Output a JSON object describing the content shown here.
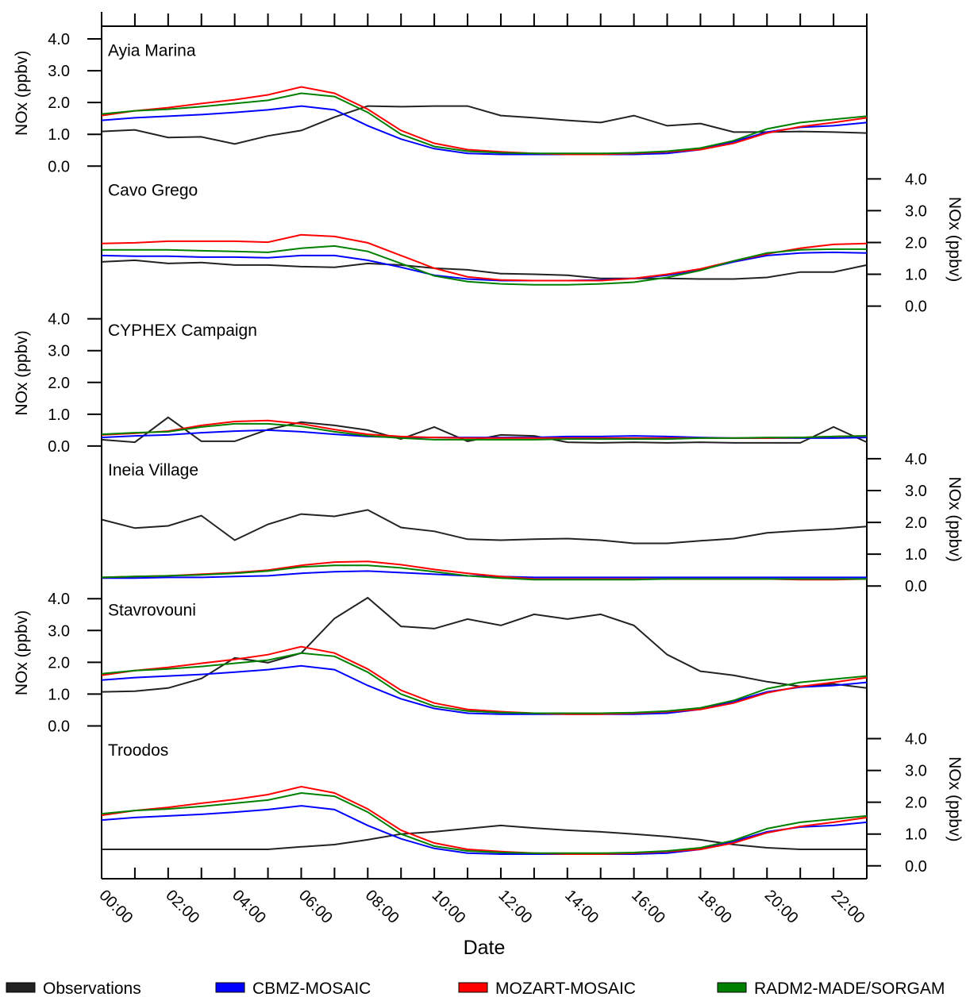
{
  "chart_data": {
    "type": "line",
    "xlabel": "Date",
    "ylabel": "NOx (ppbv)",
    "categories": [
      "00:00",
      null,
      "02:00",
      null,
      "04:00",
      null,
      "06:00",
      null,
      "08:00",
      null,
      "10:00",
      null,
      "12:00",
      null,
      "14:00",
      null,
      "16:00",
      null,
      "18:00",
      null,
      "20:00",
      null,
      "22:00",
      null
    ],
    "panels": [
      {
        "title": "Ayia Marina",
        "axis": "left",
        "ylim": [
          0,
          4.4
        ],
        "yticks": [
          {
            "value": 0,
            "label": "0.0"
          },
          {
            "value": 1,
            "label": "1.0"
          },
          {
            "value": 2,
            "label": "2.0"
          },
          {
            "value": 3,
            "label": "3.0"
          },
          {
            "value": 4,
            "label": "4.0"
          }
        ],
        "series": [
          {
            "name": "Observations",
            "color": "#222222",
            "values": [
              1.09,
              1.14,
              0.9,
              0.92,
              0.7,
              0.95,
              1.12,
              1.54,
              1.89,
              1.87,
              1.89,
              1.89,
              1.59,
              1.52,
              1.44,
              1.37,
              1.59,
              1.27,
              1.34,
              1.07,
              1.07,
              1.09,
              1.07,
              1.04
            ]
          },
          {
            "name": "CBMZ-MOSAIC",
            "color": "#0000ff",
            "values": [
              1.44,
              1.52,
              1.57,
              1.62,
              1.69,
              1.77,
              1.89,
              1.77,
              1.27,
              0.85,
              0.55,
              0.4,
              0.37,
              0.37,
              0.37,
              0.37,
              0.37,
              0.4,
              0.52,
              0.77,
              1.07,
              1.22,
              1.27,
              1.37
            ]
          },
          {
            "name": "MOZART-MOSAIC",
            "color": "#ff0000",
            "values": [
              1.59,
              1.74,
              1.84,
              1.97,
              2.09,
              2.24,
              2.49,
              2.29,
              1.79,
              1.12,
              0.72,
              0.52,
              0.45,
              0.4,
              0.37,
              0.37,
              0.4,
              0.45,
              0.52,
              0.72,
              1.04,
              1.24,
              1.37,
              1.52
            ]
          },
          {
            "name": "RADM2-MADE/SORGAM",
            "color": "#008000",
            "values": [
              1.64,
              1.74,
              1.79,
              1.87,
              1.97,
              2.07,
              2.29,
              2.19,
              1.69,
              1.0,
              0.62,
              0.47,
              0.42,
              0.4,
              0.4,
              0.4,
              0.42,
              0.47,
              0.57,
              0.8,
              1.17,
              1.37,
              1.47,
              1.57
            ]
          }
        ]
      },
      {
        "title": "Cavo Grego",
        "axis": "right",
        "ylim": [
          0,
          4.4
        ],
        "yticks": [
          {
            "value": 0,
            "label": "0.0"
          },
          {
            "value": 1,
            "label": "1.0"
          },
          {
            "value": 2,
            "label": "2.0"
          },
          {
            "value": 3,
            "label": "3.0"
          },
          {
            "value": 4,
            "label": "4.0"
          }
        ],
        "series": [
          {
            "name": "Observations",
            "color": "#222222",
            "values": [
              1.39,
              1.44,
              1.34,
              1.37,
              1.29,
              1.29,
              1.24,
              1.22,
              1.34,
              1.29,
              1.19,
              1.14,
              1.02,
              1.0,
              0.97,
              0.87,
              0.87,
              0.87,
              0.85,
              0.85,
              0.9,
              1.07,
              1.07,
              1.29
            ]
          },
          {
            "name": "CBMZ-MOSAIC",
            "color": "#0000ff",
            "values": [
              1.59,
              1.57,
              1.57,
              1.54,
              1.54,
              1.52,
              1.59,
              1.59,
              1.44,
              1.22,
              0.97,
              0.85,
              0.8,
              0.8,
              0.8,
              0.82,
              0.87,
              0.97,
              1.14,
              1.39,
              1.59,
              1.67,
              1.69,
              1.67
            ]
          },
          {
            "name": "MOZART-MOSAIC",
            "color": "#ff0000",
            "values": [
              1.97,
              1.99,
              2.04,
              2.04,
              2.04,
              2.01,
              2.24,
              2.19,
              1.99,
              1.59,
              1.19,
              0.92,
              0.82,
              0.8,
              0.8,
              0.8,
              0.87,
              1.0,
              1.17,
              1.42,
              1.64,
              1.82,
              1.94,
              1.97
            ]
          },
          {
            "name": "RADM2-MADE/SORGAM",
            "color": "#008000",
            "values": [
              1.77,
              1.77,
              1.77,
              1.74,
              1.72,
              1.69,
              1.82,
              1.89,
              1.72,
              1.34,
              0.95,
              0.77,
              0.7,
              0.67,
              0.67,
              0.7,
              0.75,
              0.9,
              1.12,
              1.42,
              1.67,
              1.77,
              1.79,
              1.79
            ]
          }
        ]
      },
      {
        "title": "CYPHEX Campaign",
        "axis": "left",
        "ylim": [
          0,
          4.4
        ],
        "yticks": [
          {
            "value": 0,
            "label": "0.0"
          },
          {
            "value": 1,
            "label": "1.0"
          },
          {
            "value": 2,
            "label": "2.0"
          },
          {
            "value": 3,
            "label": "3.0"
          },
          {
            "value": 4,
            "label": "4.0"
          }
        ],
        "series": [
          {
            "name": "Observations",
            "color": "#222222",
            "values": [
              0.2,
              0.12,
              0.9,
              0.15,
              0.15,
              0.52,
              0.75,
              0.65,
              0.5,
              0.22,
              0.6,
              0.15,
              0.35,
              0.32,
              0.12,
              0.1,
              0.12,
              0.1,
              0.12,
              0.1,
              0.1,
              0.1,
              0.6,
              0.12
            ]
          },
          {
            "name": "CBMZ-MOSAIC",
            "color": "#0000ff",
            "values": [
              0.27,
              0.32,
              0.35,
              0.42,
              0.47,
              0.5,
              0.45,
              0.37,
              0.3,
              0.27,
              0.27,
              0.27,
              0.27,
              0.27,
              0.3,
              0.3,
              0.32,
              0.3,
              0.27,
              0.25,
              0.25,
              0.25,
              0.25,
              0.27
            ]
          },
          {
            "name": "MOZART-MOSAIC",
            "color": "#ff0000",
            "values": [
              0.35,
              0.4,
              0.47,
              0.65,
              0.77,
              0.8,
              0.7,
              0.52,
              0.37,
              0.3,
              0.27,
              0.25,
              0.25,
              0.25,
              0.25,
              0.25,
              0.25,
              0.25,
              0.25,
              0.25,
              0.25,
              0.27,
              0.3,
              0.32
            ]
          },
          {
            "name": "RADM2-MADE/SORGAM",
            "color": "#008000",
            "values": [
              0.37,
              0.42,
              0.45,
              0.6,
              0.7,
              0.7,
              0.62,
              0.45,
              0.32,
              0.25,
              0.2,
              0.2,
              0.2,
              0.2,
              0.22,
              0.22,
              0.22,
              0.22,
              0.25,
              0.25,
              0.27,
              0.27,
              0.3,
              0.32
            ]
          }
        ]
      },
      {
        "title": "Ineia Village",
        "axis": "right",
        "ylim": [
          0,
          4.4
        ],
        "yticks": [
          {
            "value": 0,
            "label": "0.0"
          },
          {
            "value": 1,
            "label": "1.0"
          },
          {
            "value": 2,
            "label": "2.0"
          },
          {
            "value": 3,
            "label": "3.0"
          },
          {
            "value": 4,
            "label": "4.0"
          }
        ],
        "series": [
          {
            "name": "Observations",
            "color": "#222222",
            "values": [
              2.09,
              1.82,
              1.89,
              2.21,
              1.44,
              1.94,
              2.26,
              2.19,
              2.39,
              1.84,
              1.72,
              1.47,
              1.44,
              1.47,
              1.49,
              1.44,
              1.34,
              1.34,
              1.42,
              1.49,
              1.67,
              1.74,
              1.79,
              1.87
            ]
          },
          {
            "name": "CBMZ-MOSAIC",
            "color": "#0000ff",
            "values": [
              0.25,
              0.25,
              0.27,
              0.27,
              0.3,
              0.32,
              0.4,
              0.45,
              0.47,
              0.42,
              0.37,
              0.32,
              0.3,
              0.27,
              0.27,
              0.27,
              0.27,
              0.27,
              0.27,
              0.27,
              0.27,
              0.27,
              0.27,
              0.27
            ]
          },
          {
            "name": "MOZART-MOSAIC",
            "color": "#ff0000",
            "values": [
              0.27,
              0.3,
              0.32,
              0.37,
              0.42,
              0.5,
              0.65,
              0.75,
              0.77,
              0.67,
              0.52,
              0.4,
              0.3,
              0.22,
              0.22,
              0.22,
              0.22,
              0.22,
              0.22,
              0.22,
              0.22,
              0.2,
              0.2,
              0.22
            ]
          },
          {
            "name": "RADM2-MADE/SORGAM",
            "color": "#008000",
            "values": [
              0.27,
              0.3,
              0.32,
              0.35,
              0.4,
              0.47,
              0.6,
              0.65,
              0.65,
              0.57,
              0.45,
              0.32,
              0.25,
              0.2,
              0.2,
              0.2,
              0.2,
              0.22,
              0.22,
              0.22,
              0.22,
              0.22,
              0.22,
              0.22
            ]
          }
        ]
      },
      {
        "title": "Stavrovouni",
        "axis": "left",
        "ylim": [
          0,
          4.4
        ],
        "yticks": [
          {
            "value": 0,
            "label": "0.0"
          },
          {
            "value": 1,
            "label": "1.0"
          },
          {
            "value": 2,
            "label": "2.0"
          },
          {
            "value": 3,
            "label": "3.0"
          },
          {
            "value": 4,
            "label": "4.0"
          }
        ],
        "series": [
          {
            "name": "Observations",
            "color": "#222222",
            "values": [
              1.07,
              1.09,
              1.19,
              1.49,
              2.14,
              1.99,
              2.29,
              3.38,
              4.03,
              3.13,
              3.06,
              3.36,
              3.16,
              3.51,
              3.36,
              3.51,
              3.16,
              2.24,
              1.72,
              1.59,
              1.39,
              1.24,
              1.32,
              1.19
            ]
          },
          {
            "name": "CBMZ-MOSAIC",
            "color": "#0000ff",
            "values": [
              1.44,
              1.52,
              1.57,
              1.62,
              1.69,
              1.77,
              1.89,
              1.77,
              1.27,
              0.85,
              0.55,
              0.4,
              0.37,
              0.37,
              0.37,
              0.37,
              0.37,
              0.4,
              0.52,
              0.77,
              1.07,
              1.22,
              1.27,
              1.37
            ]
          },
          {
            "name": "MOZART-MOSAIC",
            "color": "#ff0000",
            "values": [
              1.59,
              1.74,
              1.84,
              1.97,
              2.09,
              2.24,
              2.49,
              2.29,
              1.79,
              1.12,
              0.72,
              0.52,
              0.45,
              0.4,
              0.37,
              0.37,
              0.4,
              0.45,
              0.52,
              0.72,
              1.04,
              1.24,
              1.37,
              1.52
            ]
          },
          {
            "name": "RADM2-MADE/SORGAM",
            "color": "#008000",
            "values": [
              1.64,
              1.74,
              1.79,
              1.87,
              1.97,
              2.07,
              2.29,
              2.19,
              1.69,
              1.0,
              0.62,
              0.47,
              0.42,
              0.4,
              0.4,
              0.4,
              0.42,
              0.47,
              0.57,
              0.8,
              1.17,
              1.37,
              1.47,
              1.57
            ]
          }
        ]
      },
      {
        "title": "Troodos",
        "axis": "right",
        "ylim": [
          0,
          4.4
        ],
        "yticks": [
          {
            "value": 0,
            "label": "0.0"
          },
          {
            "value": 1,
            "label": "1.0"
          },
          {
            "value": 2,
            "label": "2.0"
          },
          {
            "value": 3,
            "label": "3.0"
          },
          {
            "value": 4,
            "label": "4.0"
          }
        ],
        "series": [
          {
            "name": "Observations",
            "color": "#222222",
            "values": [
              0.52,
              0.52,
              0.52,
              0.52,
              0.52,
              0.52,
              0.6,
              0.67,
              0.82,
              1.0,
              1.07,
              1.17,
              1.27,
              1.19,
              1.12,
              1.07,
              1.0,
              0.92,
              0.82,
              0.67,
              0.57,
              0.52,
              0.52,
              0.52
            ]
          },
          {
            "name": "CBMZ-MOSAIC",
            "color": "#0000ff",
            "values": [
              1.44,
              1.52,
              1.57,
              1.62,
              1.69,
              1.77,
              1.89,
              1.77,
              1.27,
              0.85,
              0.55,
              0.4,
              0.37,
              0.37,
              0.37,
              0.37,
              0.37,
              0.4,
              0.52,
              0.77,
              1.07,
              1.22,
              1.27,
              1.37
            ]
          },
          {
            "name": "MOZART-MOSAIC",
            "color": "#ff0000",
            "values": [
              1.59,
              1.74,
              1.84,
              1.97,
              2.09,
              2.24,
              2.49,
              2.29,
              1.79,
              1.12,
              0.72,
              0.52,
              0.45,
              0.4,
              0.37,
              0.37,
              0.4,
              0.45,
              0.52,
              0.72,
              1.04,
              1.24,
              1.37,
              1.52
            ]
          },
          {
            "name": "RADM2-MADE/SORGAM",
            "color": "#008000",
            "values": [
              1.64,
              1.74,
              1.79,
              1.87,
              1.97,
              2.07,
              2.29,
              2.19,
              1.69,
              1.0,
              0.62,
              0.47,
              0.42,
              0.4,
              0.4,
              0.4,
              0.42,
              0.47,
              0.57,
              0.8,
              1.17,
              1.37,
              1.47,
              1.57
            ]
          }
        ]
      }
    ]
  }
}
